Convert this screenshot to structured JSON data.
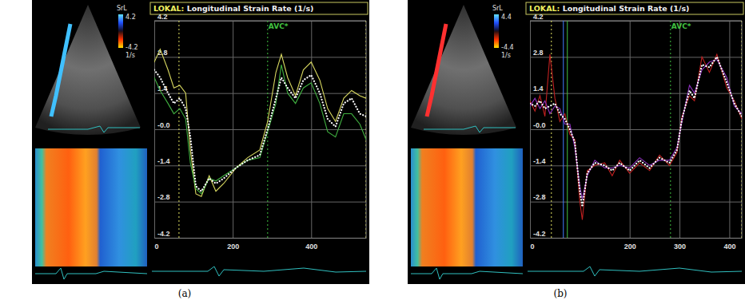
{
  "chart_data": [
    {
      "type": "line",
      "title": "LOKAL: Longitudinal Strain Rate (1/s)",
      "caption": "(a)",
      "x": [
        0,
        15,
        35,
        50,
        65,
        80,
        92,
        106,
        120,
        140,
        157,
        177,
        208,
        238,
        269,
        289,
        310,
        324,
        340,
        360,
        380,
        400,
        422,
        442,
        462,
        483,
        503,
        524,
        540
      ],
      "xlim": [
        0,
        540
      ],
      "xticks": [
        0,
        200,
        400
      ],
      "ylim": [
        -4.2,
        4.2
      ],
      "yticks": [
        4.2,
        2.8,
        1.4,
        {
          "value": 0,
          "label": "-0.0"
        },
        -1.4,
        -2.8,
        -4.2
      ],
      "grid": true,
      "series": [
        {
          "color": "#d8d860",
          "line_style": "solid",
          "values": [
            2.6,
            3.1,
            2.3,
            1.6,
            1.7,
            1.4,
            -0.8,
            -2.5,
            -2.6,
            -1.8,
            -2.4,
            -2.1,
            -1.5,
            -1.1,
            -0.8,
            0.3,
            2.2,
            2.9,
            2.0,
            1.3,
            2.3,
            2.6,
            1.9,
            0.8,
            0.3,
            1.2,
            1.5,
            1.3,
            1.2
          ]
        },
        {
          "color": "#40b040",
          "line_style": "solid",
          "values": [
            2.0,
            1.5,
            1.0,
            0.6,
            0.8,
            0.4,
            -1.3,
            -2.3,
            -2.5,
            -1.9,
            -2.0,
            -1.8,
            -1.5,
            -1.2,
            -1.1,
            -0.1,
            1.0,
            2.5,
            1.4,
            1.0,
            1.6,
            1.8,
            1.0,
            -0.1,
            -0.3,
            0.6,
            0.6,
            0.2,
            -0.4
          ]
        },
        {
          "color": "#ffffff",
          "line_style": "dotted",
          "values": [
            2.3,
            2.0,
            1.4,
            1.0,
            1.2,
            0.8,
            -0.3,
            -2.2,
            -2.4,
            -1.9,
            -2.1,
            -1.9,
            -1.5,
            -1.2,
            -1.0,
            0.0,
            1.2,
            2.0,
            1.6,
            1.2,
            1.9,
            2.1,
            1.4,
            0.4,
            0.1,
            1.0,
            1.2,
            0.6,
            0.5
          ]
        }
      ],
      "markers": [
        {
          "x": 63,
          "color": "#e0e060",
          "line_style": "dotted"
        },
        {
          "x": 289,
          "color": "#40c040",
          "line_style": "dotted",
          "label": "AVC*"
        },
        {
          "x": 540,
          "color": "#e0e060",
          "line_style": "dotted"
        }
      ],
      "colorbar": {
        "label": "SrL",
        "unit": "1/s",
        "range": [
          -4.2,
          4.2
        ]
      }
    },
    {
      "type": "line",
      "title": "LOKAL: Longitudinal Strain Rate (1/s)",
      "caption": "(b)",
      "x": [
        0,
        10,
        20,
        30,
        40,
        50,
        60,
        70,
        80,
        90,
        100,
        105,
        115,
        130,
        150,
        165,
        180,
        200,
        220,
        240,
        260,
        280,
        295,
        305,
        320,
        330,
        345,
        360,
        375,
        395,
        410,
        425
      ],
      "xlim": [
        0,
        425
      ],
      "xticks": [
        0,
        200,
        300,
        400
      ],
      "ylim": [
        -4.2,
        4.2
      ],
      "yticks": [
        4.2,
        2.8,
        1.4,
        {
          "value": 0,
          "label": "-0.0"
        },
        -1.4,
        -2.8,
        -4.2
      ],
      "grid": true,
      "series": [
        {
          "color": "#c02020",
          "line_style": "solid",
          "values": [
            1.1,
            0.7,
            1.3,
            0.5,
            2.9,
            1.2,
            0.3,
            0.6,
            -0.2,
            -0.4,
            -2.8,
            -3.5,
            -1.6,
            -1.4,
            -1.3,
            -1.8,
            -1.2,
            -1.7,
            -1.3,
            -1.6,
            -1.0,
            -1.4,
            -0.9,
            0.5,
            1.3,
            1.1,
            2.8,
            2.2,
            2.9,
            1.6,
            1.1,
            0.4
          ]
        },
        {
          "color": "#9030c0",
          "line_style": "solid",
          "values": [
            0.9,
            1.2,
            0.8,
            1.1,
            0.6,
            0.9,
            0.8,
            0.2,
            0.2,
            -0.7,
            -2.2,
            -2.7,
            -1.8,
            -1.2,
            -1.5,
            -1.5,
            -1.4,
            -1.5,
            -1.1,
            -1.4,
            -1.2,
            -1.2,
            -0.7,
            0.3,
            1.7,
            1.4,
            2.3,
            2.6,
            2.7,
            2.0,
            0.9,
            0.6
          ]
        },
        {
          "color": "#ffffff",
          "line_style": "dotted",
          "values": [
            1.0,
            0.9,
            1.1,
            0.8,
            0.9,
            1.0,
            0.6,
            0.4,
            0.0,
            -0.5,
            -2.4,
            -3.0,
            -1.7,
            -1.3,
            -1.4,
            -1.6,
            -1.3,
            -1.6,
            -1.2,
            -1.5,
            -1.1,
            -1.3,
            -0.8,
            0.4,
            1.5,
            1.2,
            2.5,
            2.4,
            2.8,
            1.8,
            1.0,
            0.5
          ]
        }
      ],
      "markers": [
        {
          "x": 43,
          "color": "#e0e060",
          "line_style": "dotted"
        },
        {
          "x": 67,
          "color": "#4080ff",
          "line_style": "solid"
        },
        {
          "x": 75,
          "color": "#40c040",
          "line_style": "solid"
        },
        {
          "x": 282,
          "color": "#40c040",
          "line_style": "dotted",
          "label": "AVC*"
        },
        {
          "x": 425,
          "color": "#e0e060",
          "line_style": "dotted"
        }
      ],
      "colorbar": {
        "label": "SrL",
        "unit": "1/s",
        "range": [
          -4.4,
          4.4
        ]
      }
    }
  ]
}
